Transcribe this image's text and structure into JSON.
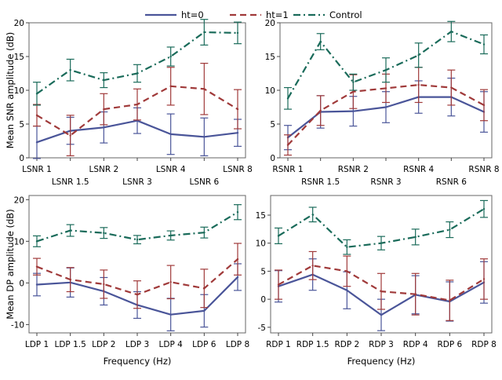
{
  "legend": [
    {
      "label": "ht=0",
      "color": "#4a5599",
      "dash": "solid"
    },
    {
      "label": "ht=1",
      "color": "#a03a3a",
      "dash": "dash"
    },
    {
      "label": "Control",
      "color": "#1a6b5a",
      "dash": "dashdot"
    }
  ],
  "chart_data": [
    {
      "type": "line",
      "panel": "top-left",
      "categories": [
        "LSNR 1",
        "LSNR 1.5",
        "LSNR 2",
        "LSNR 3",
        "LSNR 4",
        "LSNR 6",
        "LSNR 8"
      ],
      "ylabel": "Mean SNR amplitude (dB)",
      "xlabel": "",
      "ylim": [
        0,
        20
      ],
      "yticks": [
        0,
        5,
        10,
        15,
        20
      ],
      "series": [
        {
          "name": "ht=0",
          "values": [
            2.3,
            4.0,
            4.5,
            5.5,
            3.5,
            3.1,
            3.7
          ],
          "err": [
            2.4,
            2.0,
            2.3,
            1.9,
            3.0,
            2.8,
            2.0
          ]
        },
        {
          "name": "ht=1",
          "values": [
            6.3,
            3.3,
            7.2,
            7.9,
            10.6,
            10.2,
            7.2
          ],
          "err": [
            1.6,
            3.0,
            2.3,
            2.3,
            2.8,
            3.8,
            2.9
          ]
        },
        {
          "name": "Control",
          "values": [
            9.5,
            13.0,
            11.5,
            12.5,
            15.0,
            18.6,
            18.5
          ],
          "err": [
            1.7,
            1.6,
            1.1,
            1.3,
            1.4,
            1.9,
            1.6
          ]
        }
      ]
    },
    {
      "type": "line",
      "panel": "top-right",
      "categories": [
        "RSNR 1",
        "RSNR 1.5",
        "RSNR 2",
        "RSNR 3",
        "RSNR 4",
        "RSNR 6",
        "RSNR 8"
      ],
      "ylabel": "",
      "xlabel": "",
      "ylim": [
        0,
        20
      ],
      "yticks": [
        0,
        5,
        10,
        15,
        20
      ],
      "series": [
        {
          "name": "ht=0",
          "values": [
            3.0,
            6.8,
            6.9,
            7.5,
            9.0,
            9.0,
            6.8
          ],
          "err": [
            1.8,
            2.4,
            2.2,
            2.3,
            2.4,
            2.8,
            3.0
          ]
        },
        {
          "name": "ht=1",
          "values": [
            1.9,
            7.0,
            9.8,
            10.3,
            10.8,
            10.4,
            7.8
          ],
          "err": [
            1.5,
            2.2,
            2.5,
            2.1,
            2.6,
            2.6,
            2.3
          ]
        },
        {
          "name": "Control",
          "values": [
            8.8,
            17.2,
            11.2,
            13.0,
            15.2,
            18.7,
            16.8
          ],
          "err": [
            1.6,
            1.2,
            1.2,
            1.8,
            1.8,
            1.5,
            1.4
          ]
        }
      ]
    },
    {
      "type": "line",
      "panel": "bottom-left",
      "categories": [
        "LDP 1",
        "LDP 1.5",
        "LDP 2",
        "LDP 3",
        "LDP 4",
        "LDP 6",
        "LDP 8"
      ],
      "ylabel": "Mean DP amplitude (dB)",
      "xlabel": "Frequency (Hz)",
      "ylim": [
        -12,
        21
      ],
      "yticks": [
        -10,
        0,
        10,
        20
      ],
      "series": [
        {
          "name": "ht=0",
          "values": [
            -0.4,
            0.1,
            -2.0,
            -5.3,
            -7.6,
            -6.7,
            1.4
          ],
          "err": [
            2.7,
            3.5,
            3.3,
            3.2,
            3.9,
            3.9,
            3.2
          ]
        },
        {
          "name": "ht=1",
          "values": [
            3.9,
            0.8,
            -0.3,
            -2.8,
            0.2,
            -1.3,
            5.7
          ],
          "err": [
            2.0,
            2.9,
            3.4,
            3.3,
            4.0,
            4.6,
            3.8
          ]
        },
        {
          "name": "Control",
          "values": [
            10.0,
            12.6,
            12.0,
            10.4,
            11.4,
            12.1,
            17.0
          ],
          "err": [
            1.3,
            1.4,
            1.3,
            1.0,
            1.1,
            1.3,
            1.8
          ]
        }
      ]
    },
    {
      "type": "line",
      "panel": "bottom-right",
      "categories": [
        "RDP 1",
        "RDP 1.5",
        "RDP 2",
        "RDP 3",
        "RDP 4",
        "RDP 6",
        "RDP 8"
      ],
      "ylabel": "",
      "xlabel": "Frequency (Hz)",
      "ylim": [
        -6,
        18.5
      ],
      "yticks": [
        -5,
        0,
        5,
        10,
        15
      ],
      "series": [
        {
          "name": "ht=0",
          "values": [
            2.3,
            4.4,
            1.6,
            -2.8,
            0.8,
            -0.4,
            3.0
          ],
          "err": [
            2.8,
            2.8,
            3.3,
            2.8,
            3.4,
            3.5,
            3.7
          ]
        },
        {
          "name": "ht=1",
          "values": [
            2.6,
            6.0,
            5.0,
            1.4,
            0.9,
            -0.2,
            3.6
          ],
          "err": [
            2.6,
            2.5,
            2.7,
            3.2,
            3.7,
            3.6,
            3.6
          ]
        },
        {
          "name": "Control",
          "values": [
            11.3,
            15.1,
            9.3,
            10.0,
            11.1,
            12.4,
            16.1
          ],
          "err": [
            1.4,
            1.3,
            1.3,
            1.2,
            1.4,
            1.4,
            1.5
          ]
        }
      ]
    }
  ]
}
